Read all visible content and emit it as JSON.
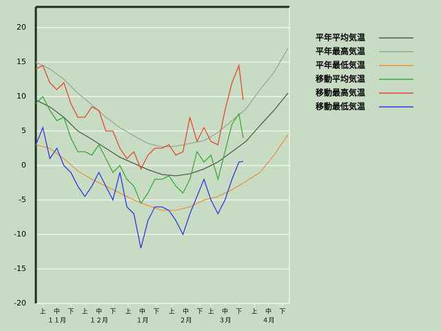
{
  "chart_data": {
    "type": "line",
    "xlim": [
      0,
      181
    ],
    "ylim": [
      -20,
      23
    ],
    "yticks": [
      20,
      15,
      10,
      5,
      0,
      -5,
      -10,
      -15,
      -20
    ],
    "xticks": [
      {
        "value": 5,
        "label": "上"
      },
      {
        "value": 15,
        "label": "中"
      },
      {
        "value": 25,
        "label": "下"
      },
      {
        "value": 35,
        "label": "上"
      },
      {
        "value": 45,
        "label": "中"
      },
      {
        "value": 55,
        "label": "下"
      },
      {
        "value": 66,
        "label": "上"
      },
      {
        "value": 76,
        "label": "中"
      },
      {
        "value": 86,
        "label": "下"
      },
      {
        "value": 97,
        "label": "上"
      },
      {
        "value": 107,
        "label": "中"
      },
      {
        "value": 117,
        "label": "下"
      },
      {
        "value": 125,
        "label": "上"
      },
      {
        "value": 135,
        "label": "中"
      },
      {
        "value": 145,
        "label": "下"
      },
      {
        "value": 156,
        "label": "上"
      },
      {
        "value": 166,
        "label": "中"
      },
      {
        "value": 176,
        "label": "下"
      }
    ],
    "months": [
      "１１月",
      "１２月",
      "１月",
      "２月",
      "３月",
      "４月"
    ],
    "grid": true,
    "series": [
      {
        "name": "平年平均気温",
        "color": "#505a50",
        "x": [
          0,
          10,
          20,
          30,
          40,
          50,
          60,
          70,
          80,
          90,
          100,
          110,
          120,
          130,
          140,
          150,
          160,
          170,
          180
        ],
        "values": [
          9.5,
          8.5,
          7,
          5,
          3.8,
          2.5,
          1.2,
          0.3,
          -0.6,
          -1.3,
          -1.5,
          -1.2,
          -0.5,
          0.5,
          2,
          3.5,
          5.8,
          8,
          10.5
        ]
      },
      {
        "name": "平年最高気温",
        "color": "#9aa89a",
        "x": [
          0,
          10,
          20,
          30,
          40,
          50,
          60,
          70,
          80,
          90,
          100,
          110,
          120,
          130,
          140,
          150,
          160,
          170,
          180
        ],
        "values": [
          15,
          14,
          12.5,
          10.5,
          8.8,
          7,
          5.5,
          4.3,
          3.2,
          2.7,
          2.8,
          3.2,
          3.6,
          4.8,
          6.5,
          8.2,
          11,
          13.5,
          17
        ]
      },
      {
        "name": "平年最低気温",
        "color": "#e8953c",
        "x": [
          0,
          10,
          20,
          30,
          40,
          50,
          60,
          70,
          80,
          90,
          100,
          110,
          120,
          130,
          140,
          150,
          160,
          170,
          180
        ],
        "values": [
          3,
          2.5,
          1,
          -0.8,
          -2,
          -3,
          -4,
          -5,
          -5.8,
          -6.5,
          -6.5,
          -6,
          -5,
          -4.5,
          -3.5,
          -2.3,
          -1,
          1.5,
          4.5
        ]
      },
      {
        "name": "移動平均気温",
        "color": "#3aa83a",
        "x": [
          0,
          5,
          10,
          15,
          20,
          25,
          30,
          35,
          40,
          45,
          50,
          55,
          60,
          65,
          70,
          75,
          80,
          85,
          90,
          95,
          100,
          105,
          110,
          115,
          120,
          125,
          130,
          135,
          140,
          145,
          148
        ],
        "values": [
          9,
          10,
          8,
          6.5,
          7,
          4,
          2,
          2,
          1.5,
          3,
          1,
          -1,
          0,
          -2,
          -3,
          -5.5,
          -4,
          -2,
          -2,
          -1.5,
          -3,
          -4,
          -2,
          2,
          0.5,
          1.5,
          -2,
          2,
          6,
          7.5,
          4
        ]
      },
      {
        "name": "移動最高気温",
        "color": "#e04a30",
        "x": [
          0,
          5,
          10,
          15,
          20,
          25,
          30,
          35,
          40,
          45,
          50,
          55,
          60,
          65,
          70,
          75,
          80,
          85,
          90,
          95,
          100,
          105,
          110,
          115,
          120,
          125,
          130,
          135,
          140,
          145,
          148
        ],
        "values": [
          14,
          14.5,
          12,
          11,
          12,
          9,
          7,
          7,
          8.5,
          8,
          5,
          5,
          2.5,
          1,
          2,
          -0.5,
          1.5,
          2.5,
          2.5,
          3,
          1.5,
          2,
          7,
          3.5,
          5.5,
          3.5,
          3,
          8,
          12,
          14.5,
          9.5
        ]
      },
      {
        "name": "移動最低気温",
        "color": "#2a3ae0",
        "x": [
          0,
          5,
          10,
          15,
          20,
          25,
          30,
          35,
          40,
          45,
          50,
          55,
          60,
          65,
          70,
          75,
          80,
          85,
          90,
          95,
          100,
          105,
          110,
          115,
          120,
          125,
          130,
          135,
          140,
          145,
          148
        ],
        "values": [
          3,
          5.5,
          1,
          2.5,
          0,
          -1,
          -3,
          -4.5,
          -3,
          -1,
          -3,
          -5,
          -1,
          -6,
          -7,
          -12,
          -8,
          -6,
          -6,
          -6.5,
          -8,
          -10,
          -7,
          -4.5,
          -2,
          -5,
          -7,
          -5,
          -2,
          0.5,
          0.6
        ]
      }
    ]
  }
}
